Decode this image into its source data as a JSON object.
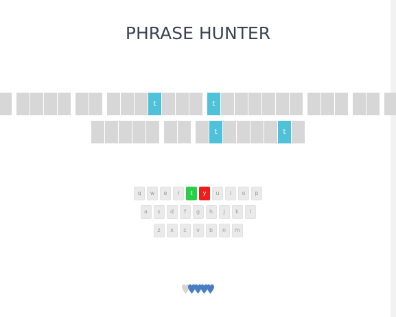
{
  "game": {
    "title": "PHRASE HUNTER"
  },
  "phrase": {
    "row1": [
      [
        "",
        ""
      ],
      [
        "",
        "",
        "",
        ""
      ],
      [
        "",
        ""
      ],
      [
        "",
        "",
        "",
        "t",
        "",
        "",
        ""
      ],
      [
        "t",
        "",
        "",
        "",
        "",
        "",
        ""
      ],
      [
        "",
        "",
        ""
      ],
      [
        "",
        ""
      ],
      [
        "",
        ""
      ]
    ],
    "row2": [
      [
        "",
        "",
        "",
        "",
        ""
      ],
      [
        "",
        ""
      ],
      [
        "",
        "t",
        "",
        "",
        "",
        "",
        "t",
        ""
      ]
    ]
  },
  "keyboard": {
    "rows": [
      [
        "q",
        "w",
        "e",
        "r",
        "t",
        "y",
        "u",
        "i",
        "o",
        "p"
      ],
      [
        "a",
        "s",
        "d",
        "f",
        "g",
        "h",
        "j",
        "k",
        "l"
      ],
      [
        "z",
        "x",
        "c",
        "v",
        "b",
        "n",
        "m"
      ]
    ],
    "chosen": [
      "t"
    ],
    "wrong": [
      "y"
    ]
  },
  "scoreboard": {
    "lives_total": 5,
    "lives_lost": 1,
    "colors": {
      "live": "#4a7ec4",
      "lost": "#d5d5d5"
    }
  }
}
